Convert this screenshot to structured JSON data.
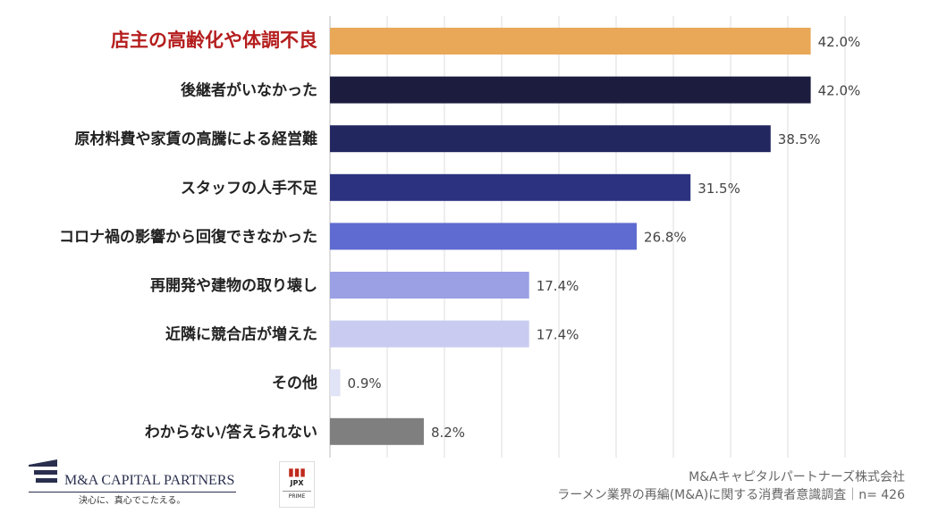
{
  "chart_data": {
    "type": "bar",
    "orientation": "horizontal",
    "categories": [
      "店主の高齢化や体調不良",
      "後継者がいなかった",
      "原材料費や家賃の高騰による経営難",
      "スタッフの人手不足",
      "コロナ禍の影響から回復できなかった",
      "再開発や建物の取り壊し",
      "近隣に競合店が増えた",
      "その他",
      "わからない/答えられない"
    ],
    "values": [
      42.0,
      42.0,
      38.5,
      31.5,
      26.8,
      17.4,
      17.4,
      0.9,
      8.2
    ],
    "value_labels": [
      "42.0%",
      "42.0%",
      "38.5%",
      "31.5%",
      "26.8%",
      "17.4%",
      "17.4%",
      "0.9%",
      "8.2%"
    ],
    "colors": [
      "#E8A857",
      "#1C1C3E",
      "#23275F",
      "#2C3280",
      "#5F6BD0",
      "#9AA0E3",
      "#C9CCF0",
      "#E1E3F6",
      "#7F7F7F"
    ],
    "highlight_color": "#B51E1E",
    "xlim": [
      0,
      45
    ],
    "grid": true,
    "grid_step": 5,
    "unit": "%"
  },
  "source": {
    "line1": "M&Aキャピタルパートナーズ株式会社",
    "line2": "ラーメン業界の再編(M&A)に関する消費者意識調査｜n= 426"
  },
  "logo": {
    "name": "M&A CAPITAL PARTNERS",
    "tagline": "決心に、真心でこたえる。",
    "badge_top": "JPX",
    "badge_bottom": "PRIME"
  }
}
